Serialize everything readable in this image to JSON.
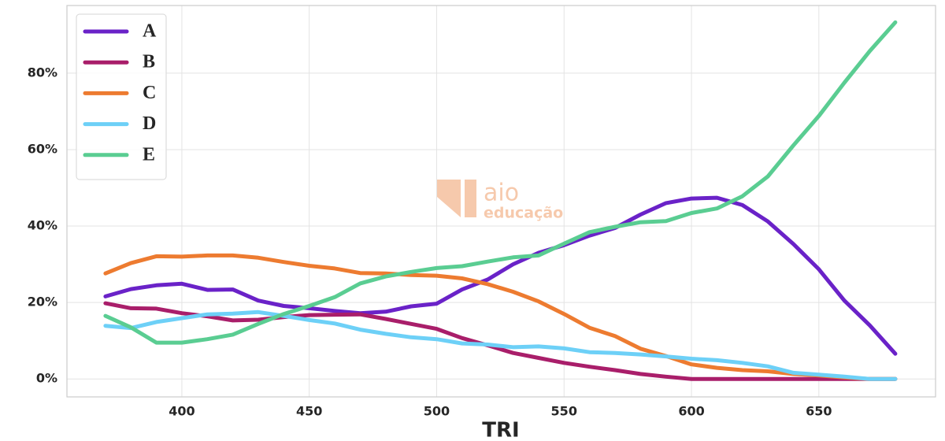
{
  "chart_data": {
    "type": "line",
    "x_label": "TRI",
    "watermark": {
      "brand": "aio",
      "sub": "educação"
    },
    "x": [
      370,
      380,
      390,
      400,
      410,
      420,
      430,
      440,
      450,
      460,
      470,
      480,
      490,
      500,
      510,
      520,
      530,
      540,
      550,
      560,
      570,
      580,
      590,
      600,
      610,
      620,
      630,
      640,
      650,
      660,
      670,
      680
    ],
    "xlim": [
      354.9,
      695.8
    ],
    "xticks": [
      400,
      450,
      500,
      550,
      600,
      650
    ],
    "ylim": [
      -4.7,
      97.7
    ],
    "yticks": [
      {
        "value": 0,
        "label": "0%"
      },
      {
        "value": 20,
        "label": "20%"
      },
      {
        "value": 40,
        "label": "40%"
      },
      {
        "value": 60,
        "label": "60%"
      },
      {
        "value": 80,
        "label": "80%"
      }
    ],
    "grid": true,
    "legend": "upper-left",
    "series": [
      {
        "name": "A",
        "color": "#6a22c8",
        "values": [
          21.6,
          23.5,
          24.5,
          24.9,
          23.3,
          23.4,
          20.5,
          19.1,
          18.5,
          17.8,
          17.2,
          17.6,
          19.0,
          19.7,
          23.4,
          26.0,
          30.0,
          33.0,
          35.0,
          37.5,
          39.5,
          43.0,
          46.0,
          47.2,
          47.4,
          45.5,
          41.2,
          35.3,
          28.7,
          20.5,
          14.0,
          6.6
        ]
      },
      {
        "name": "B",
        "color": "#a91e6a",
        "values": [
          19.8,
          18.5,
          18.4,
          17.2,
          16.4,
          15.3,
          15.5,
          16.2,
          16.7,
          16.8,
          16.9,
          15.7,
          14.4,
          13.1,
          10.7,
          8.8,
          6.8,
          5.5,
          4.2,
          3.2,
          2.3,
          1.3,
          0.6,
          0,
          0,
          0,
          0,
          0,
          0,
          0,
          0,
          0
        ]
      },
      {
        "name": "C",
        "color": "#ed7b30",
        "values": [
          27.6,
          30.3,
          32.1,
          32.0,
          32.3,
          32.3,
          31.7,
          30.6,
          29.6,
          28.9,
          27.7,
          27.6,
          27.2,
          27.0,
          26.3,
          24.8,
          22.8,
          20.3,
          17.0,
          13.4,
          11.2,
          7.9,
          6.0,
          3.8,
          2.9,
          2.3,
          2.0,
          1.3,
          0.9,
          0.4,
          0,
          0
        ]
      },
      {
        "name": "D",
        "color": "#6dd0f7",
        "values": [
          13.9,
          13.3,
          14.9,
          15.9,
          16.9,
          17.1,
          17.5,
          16.5,
          15.4,
          14.5,
          12.9,
          11.8,
          10.9,
          10.4,
          9.3,
          9.0,
          8.3,
          8.5,
          8.0,
          7.0,
          6.8,
          6.4,
          5.9,
          5.3,
          4.9,
          4.2,
          3.3,
          1.6,
          1.1,
          0.6,
          0,
          0
        ]
      },
      {
        "name": "E",
        "color": "#5acd92",
        "values": [
          16.5,
          13.5,
          9.5,
          9.5,
          10.4,
          11.6,
          14.4,
          17.0,
          19.1,
          21.4,
          25.0,
          26.8,
          28.0,
          29.0,
          29.5,
          30.7,
          31.8,
          32.3,
          35.4,
          38.4,
          39.8,
          41.0,
          41.3,
          43.4,
          44.6,
          47.8,
          53.0,
          61.1,
          68.8,
          77.5,
          85.8,
          93.3
        ]
      }
    ]
  }
}
